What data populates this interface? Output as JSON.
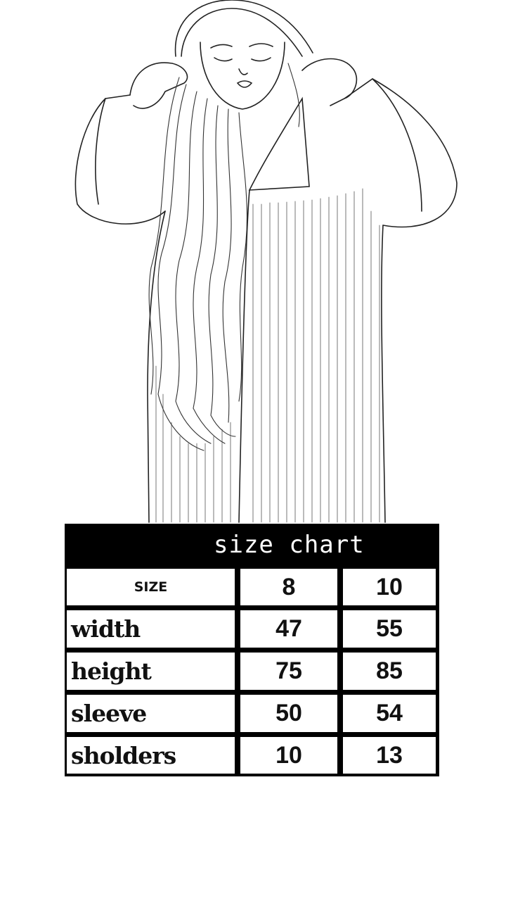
{
  "size_chart": {
    "title": "size chart",
    "header": {
      "label": "SIZE",
      "sizes": [
        "8",
        "10"
      ]
    },
    "rows": [
      {
        "label": "width",
        "values": [
          "47",
          "55"
        ]
      },
      {
        "label": "height",
        "values": [
          "75",
          "85"
        ]
      },
      {
        "label": "sleeve",
        "values": [
          "50",
          "54"
        ]
      },
      {
        "label": "sholders",
        "values": [
          "10",
          "13"
        ]
      }
    ]
  }
}
